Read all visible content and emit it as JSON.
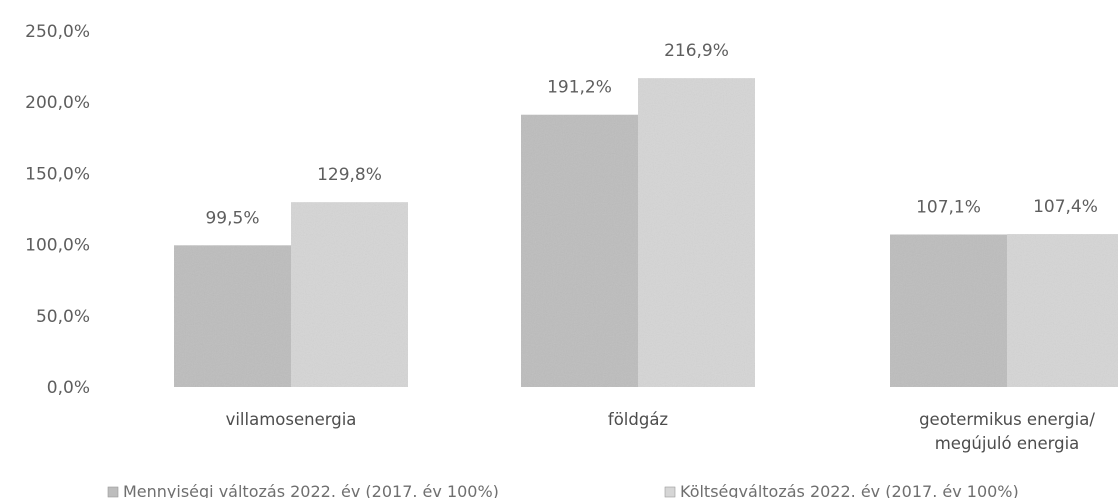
{
  "chart_data": {
    "type": "bar",
    "categories": [
      [
        "villamosenergia"
      ],
      [
        "földgáz"
      ],
      [
        "geotermikus energia/",
        "megújuló energia"
      ]
    ],
    "series": [
      {
        "name": "Mennyiségi változás 2022. év (2017. év 100%)",
        "values": [
          99.5,
          191.2,
          107.1
        ],
        "labels": [
          "99,5%",
          "191,2%",
          "107,1%"
        ],
        "color": "#bdbdbd"
      },
      {
        "name": "Költségváltozás 2022. év (2017. év 100%)",
        "values": [
          129.8,
          216.9,
          107.4
        ],
        "labels": [
          "129,8%",
          "216,9%",
          "107,4%"
        ],
        "color": "#d6d6d6"
      }
    ],
    "y_ticks": [
      0,
      50,
      100,
      150,
      200,
      250
    ],
    "y_tick_labels": [
      "0,0%",
      "50,0%",
      "100,0%",
      "150,0%",
      "200,0%",
      "250,0%"
    ],
    "ylim": [
      0,
      250
    ],
    "grid": false,
    "legend_position": "bottom"
  }
}
